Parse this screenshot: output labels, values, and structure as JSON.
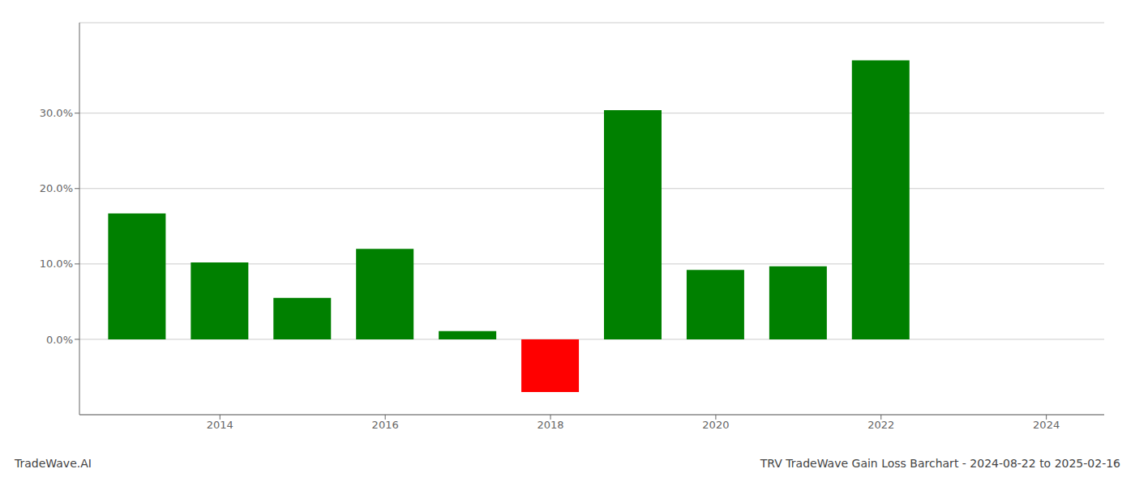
{
  "chart_data": {
    "type": "bar",
    "title": "TRV TradeWave Gain Loss Barchart - 2024-08-22 to 2025-02-16",
    "annotations": [
      "TradeWave.AI"
    ],
    "x": [
      2013,
      2014,
      2015,
      2016,
      2017,
      2018,
      2019,
      2020,
      2021,
      2022,
      2023
    ],
    "values": [
      0.167,
      0.102,
      0.055,
      0.12,
      0.011,
      -0.07,
      0.304,
      0.092,
      0.097,
      0.37,
      0.0
    ],
    "colors": [
      "#008000",
      "#008000",
      "#008000",
      "#008000",
      "#008000",
      "#ff0000",
      "#008000",
      "#008000",
      "#008000",
      "#008000",
      "#008000"
    ],
    "xlim": [
      2012.3,
      2024.7
    ],
    "xticks": [
      2014,
      2016,
      2018,
      2020,
      2022,
      2024
    ],
    "ylim": [
      -0.1,
      0.42
    ],
    "yticks": [
      {
        "value": 0.0,
        "label": "0.0%"
      },
      {
        "value": 0.1,
        "label": "10.0%"
      },
      {
        "value": 0.2,
        "label": "20.0%"
      },
      {
        "value": 0.3,
        "label": "30.0%"
      }
    ],
    "grid": true
  }
}
